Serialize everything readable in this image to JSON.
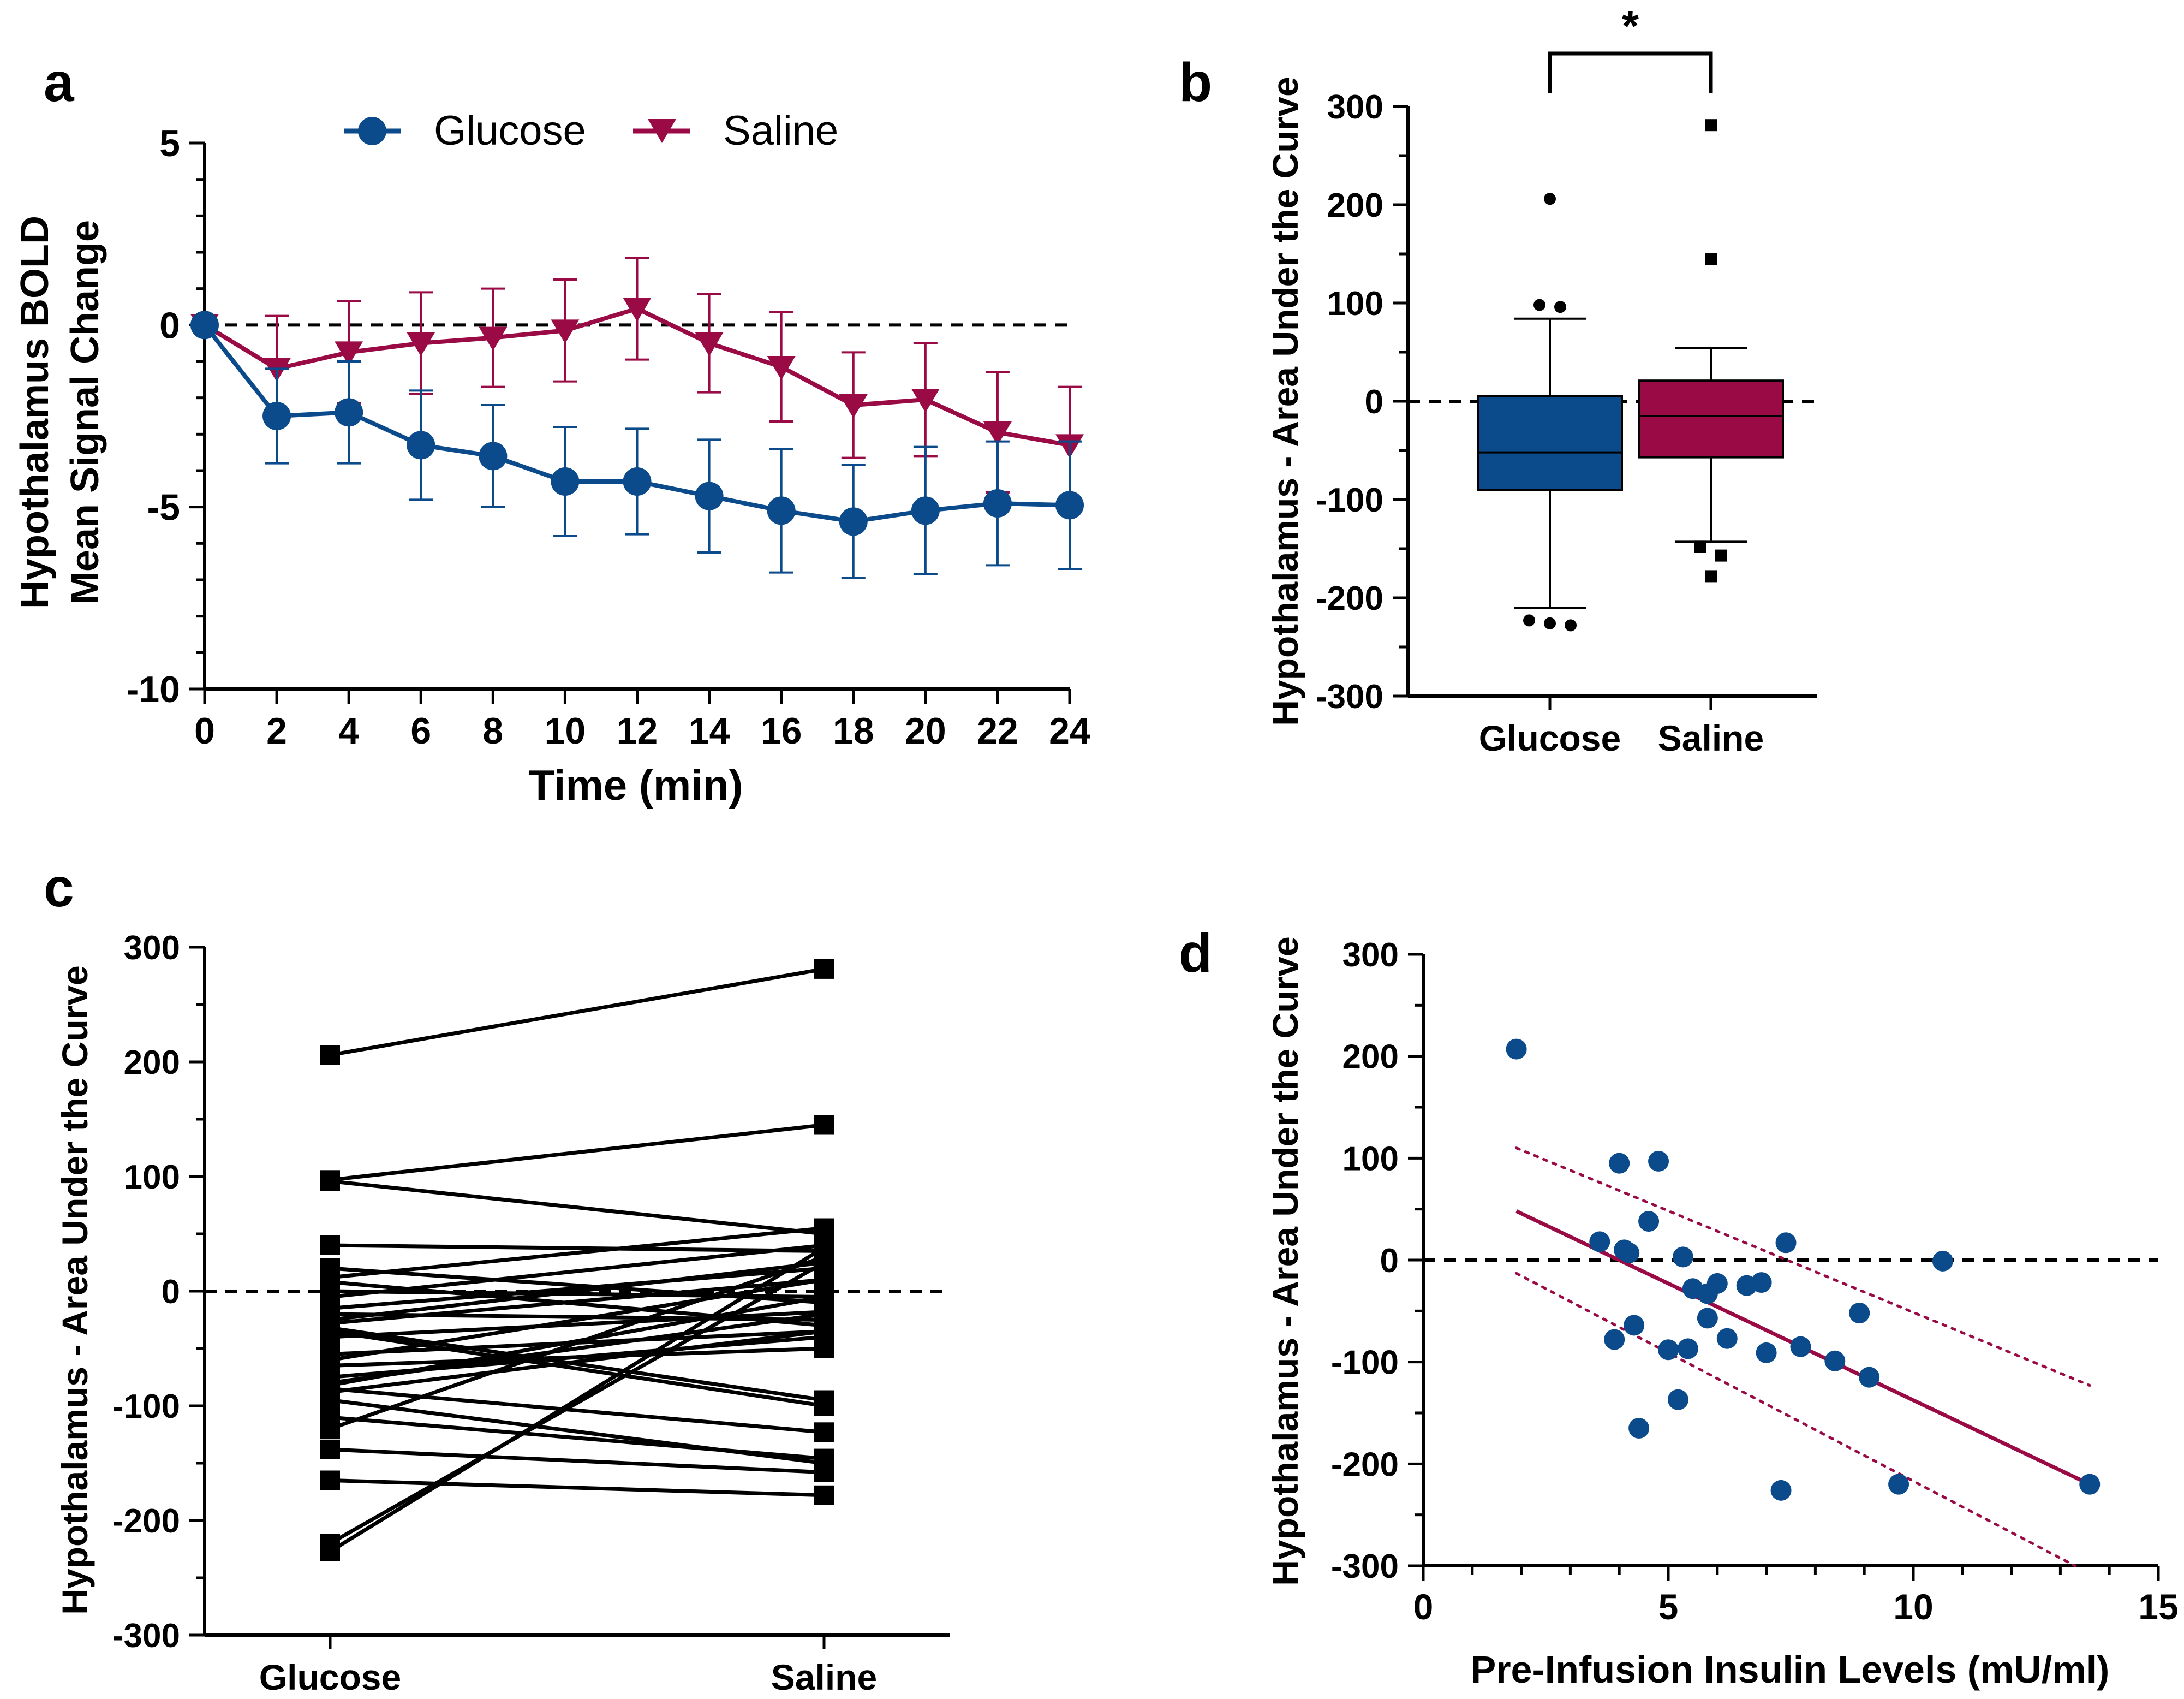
{
  "colors": {
    "glucose": "#0B4A8B",
    "saline": "#9A0B45",
    "axis": "#000000"
  },
  "chart_data": [
    {
      "panel": "a",
      "type": "line",
      "ylabel_line1": "Hypothalamus BOLD",
      "ylabel_line2": "Mean Signal Change",
      "xlabel": "Time (min)",
      "xlim": [
        0,
        24
      ],
      "ylim": [
        -10,
        5
      ],
      "xticks": [
        0,
        2,
        4,
        6,
        8,
        10,
        12,
        14,
        16,
        18,
        20,
        22,
        24
      ],
      "yticks": [
        5,
        0,
        -5,
        -10
      ],
      "reference_line": 0,
      "legend": [
        "Glucose",
        "Saline"
      ],
      "x": [
        0,
        2,
        4,
        6,
        8,
        10,
        12,
        14,
        16,
        18,
        20,
        22,
        24
      ],
      "series": [
        {
          "name": "Glucose",
          "marker": "circle",
          "values": [
            0,
            -2.5,
            -2.4,
            -3.3,
            -3.6,
            -4.3,
            -4.3,
            -4.7,
            -5.1,
            -5.4,
            -5.1,
            -4.9,
            -4.95
          ],
          "error": [
            0,
            1.3,
            1.4,
            1.5,
            1.4,
            1.5,
            1.45,
            1.55,
            1.7,
            1.55,
            1.75,
            1.7,
            1.75
          ]
        },
        {
          "name": "Saline",
          "marker": "triangle-down",
          "values": [
            0,
            -1.2,
            -0.75,
            -0.5,
            -0.35,
            -0.15,
            0.45,
            -0.5,
            -1.15,
            -2.2,
            -2.05,
            -2.95,
            -3.3
          ],
          "error": [
            0,
            1.45,
            1.4,
            1.4,
            1.35,
            1.4,
            1.4,
            1.35,
            1.5,
            1.45,
            1.55,
            1.65,
            1.6
          ]
        }
      ]
    },
    {
      "panel": "b",
      "type": "box",
      "ylabel": "Hypothalamus - Area Under the Curve",
      "ylim": [
        -300,
        300
      ],
      "yticks": [
        300,
        200,
        100,
        0,
        -100,
        -200,
        -300
      ],
      "categories": [
        "Glucose",
        "Saline"
      ],
      "significance": "*",
      "reference_line": 0,
      "boxes": [
        {
          "name": "Glucose",
          "q1": -90,
          "median": -52,
          "q3": 5,
          "whisker_low": -210,
          "whisker_high": 84,
          "outliers": [
            206,
            98,
            96,
            -223,
            -226,
            -228
          ]
        },
        {
          "name": "Saline",
          "q1": -57,
          "median": -15,
          "q3": 21,
          "whisker_low": -143,
          "whisker_high": 54,
          "outliers": [
            281,
            145,
            -148,
            -157,
            -178
          ]
        }
      ]
    },
    {
      "panel": "c",
      "type": "paired-line",
      "ylabel": "Hypothalamus - Area Under the Curve",
      "ylim": [
        -300,
        300
      ],
      "yticks": [
        300,
        200,
        100,
        0,
        -100,
        -200,
        -300
      ],
      "categories": [
        "Glucose",
        "Saline"
      ],
      "reference_line": 0,
      "pairs": [
        [
          206,
          281
        ],
        [
          97,
          145
        ],
        [
          96,
          50
        ],
        [
          40,
          35
        ],
        [
          20,
          -10
        ],
        [
          12,
          55
        ],
        [
          8,
          -30
        ],
        [
          0,
          -5
        ],
        [
          -5,
          40
        ],
        [
          -15,
          20
        ],
        [
          -20,
          -25
        ],
        [
          -25,
          25
        ],
        [
          -28,
          10
        ],
        [
          -32,
          -95
        ],
        [
          -35,
          -100
        ],
        [
          -40,
          -18
        ],
        [
          -55,
          -35
        ],
        [
          -60,
          10
        ],
        [
          -65,
          -50
        ],
        [
          -75,
          -40
        ],
        [
          -80,
          -20
        ],
        [
          -82,
          -5
        ],
        [
          -85,
          -123
        ],
        [
          -88,
          -35
        ],
        [
          -95,
          -150
        ],
        [
          -110,
          -146
        ],
        [
          -120,
          30
        ],
        [
          -138,
          -158
        ],
        [
          -165,
          -178
        ],
        [
          -220,
          25
        ],
        [
          -227,
          38
        ]
      ]
    },
    {
      "panel": "d",
      "type": "scatter",
      "ylabel": "Hypothalamus - Area Under the Curve",
      "xlabel": "Pre-Infusion Insulin Levels (mU/ml)",
      "xlim": [
        0,
        15
      ],
      "ylim": [
        -300,
        300
      ],
      "xticks": [
        0,
        5,
        10,
        15
      ],
      "yticks": [
        300,
        200,
        100,
        0,
        -100,
        -200,
        -300
      ],
      "reference_line": 0,
      "fit": {
        "x": [
          1.9,
          13.6
        ],
        "y": [
          48,
          -220
        ]
      },
      "ci_upper": {
        "x": [
          1.9,
          13.6
        ],
        "y": [
          110,
          -123
        ]
      },
      "ci_lower": {
        "x": [
          1.9,
          13.3
        ],
        "y": [
          -13,
          -300
        ]
      },
      "points": [
        [
          1.9,
          207
        ],
        [
          3.6,
          18
        ],
        [
          3.9,
          -78
        ],
        [
          4.0,
          95
        ],
        [
          4.1,
          10
        ],
        [
          4.2,
          7
        ],
        [
          4.3,
          -64
        ],
        [
          4.4,
          -165
        ],
        [
          4.6,
          38
        ],
        [
          4.8,
          97
        ],
        [
          5.0,
          -88
        ],
        [
          5.2,
          -137
        ],
        [
          5.3,
          3
        ],
        [
          5.4,
          -87
        ],
        [
          5.5,
          -28
        ],
        [
          5.8,
          -33
        ],
        [
          5.8,
          -57
        ],
        [
          6.0,
          -23
        ],
        [
          6.2,
          -77
        ],
        [
          6.6,
          -25
        ],
        [
          6.9,
          -22
        ],
        [
          7.0,
          -91
        ],
        [
          7.3,
          -226
        ],
        [
          7.4,
          17
        ],
        [
          7.7,
          -85
        ],
        [
          8.4,
          -99
        ],
        [
          8.9,
          -52
        ],
        [
          9.1,
          -115
        ],
        [
          9.7,
          -220
        ],
        [
          10.6,
          -1
        ],
        [
          13.6,
          -220
        ]
      ]
    }
  ]
}
